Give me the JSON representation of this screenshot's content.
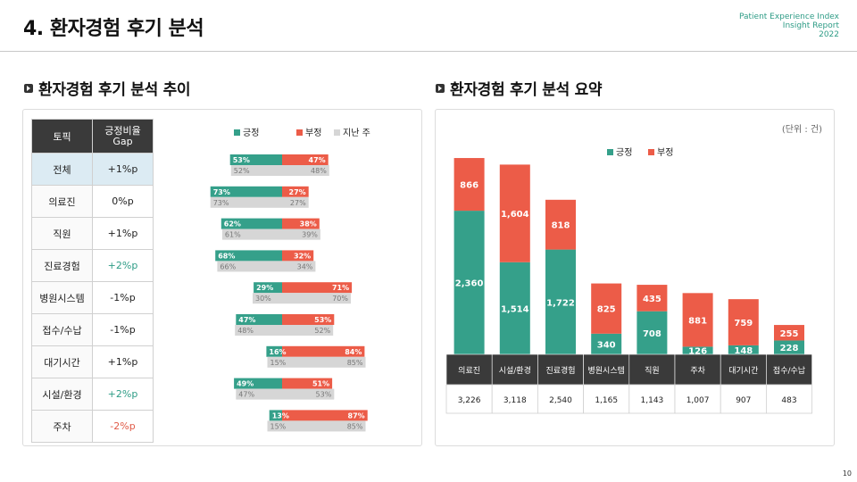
{
  "header": {
    "title": "4. 환자경험 후기 분석",
    "meta": [
      "Patient Experience Index",
      "Insight Report",
      "2022"
    ]
  },
  "left_section": {
    "title": "환자경험 후기 분석 추이"
  },
  "right_section": {
    "title": "환자경험 후기 분석 요약"
  },
  "table": {
    "headers": [
      "토픽",
      "긍정비율 Gap"
    ],
    "rows": [
      {
        "topic": "전체",
        "gap": "+1%p",
        "tone": "neu",
        "highlight": true
      },
      {
        "topic": "의료진",
        "gap": "0%p",
        "tone": "neu",
        "highlight": false
      },
      {
        "topic": "직원",
        "gap": "+1%p",
        "tone": "neu",
        "highlight": false
      },
      {
        "topic": "진료경험",
        "gap": "+2%p",
        "tone": "pos",
        "highlight": false
      },
      {
        "topic": "병원시스템",
        "gap": "-1%p",
        "tone": "neu",
        "highlight": false
      },
      {
        "topic": "접수/수납",
        "gap": "-1%p",
        "tone": "neu",
        "highlight": false
      },
      {
        "topic": "대기시간",
        "gap": "+1%p",
        "tone": "neu",
        "highlight": false
      },
      {
        "topic": "시설/환경",
        "gap": "+2%p",
        "tone": "pos",
        "highlight": false
      },
      {
        "topic": "주차",
        "gap": "-2%p",
        "tone": "neg",
        "highlight": false
      }
    ]
  },
  "colors": {
    "positive": "#35a08a",
    "negative": "#ec5c48",
    "previous": "#d6d6d6"
  },
  "chart_data": [
    {
      "type": "bar",
      "legend": [
        "긍정",
        "부정",
        "지난 주"
      ],
      "legend_position": "top",
      "categories": [
        "전체",
        "의료진",
        "직원",
        "진료경험",
        "병원시스템",
        "접수/수납",
        "대기시간",
        "시설/환경",
        "주차"
      ],
      "series": [
        {
          "name": "긍정",
          "values": [
            53,
            73,
            62,
            68,
            29,
            47,
            16,
            49,
            13
          ]
        },
        {
          "name": "부정",
          "values": [
            47,
            27,
            38,
            32,
            71,
            53,
            84,
            51,
            87
          ]
        },
        {
          "name": "지난 주 긍정",
          "values": [
            52,
            73,
            61,
            66,
            30,
            48,
            15,
            47,
            15
          ]
        },
        {
          "name": "지난 주 부정",
          "values": [
            48,
            27,
            39,
            34,
            70,
            52,
            85,
            53,
            85
          ]
        }
      ],
      "unit": "%"
    },
    {
      "type": "bar",
      "stacked": true,
      "unit_label": "(단위 : 건)",
      "legend": [
        "긍정",
        "부정"
      ],
      "legend_position": "top",
      "categories": [
        "의료진",
        "시설/환경",
        "진료경험",
        "병원시스템",
        "직원",
        "주차",
        "대기시간",
        "접수/수납"
      ],
      "series": [
        {
          "name": "긍정",
          "values": [
            2360,
            1514,
            1722,
            340,
            708,
            126,
            148,
            228
          ]
        },
        {
          "name": "부정",
          "values": [
            866,
            1604,
            818,
            825,
            435,
            881,
            759,
            255
          ]
        }
      ],
      "totals": [
        3226,
        3118,
        2540,
        1165,
        1143,
        1007,
        907,
        483
      ],
      "total_labels": [
        "3,226",
        "3,118",
        "2,540",
        "1,165",
        "1,143",
        "1,007",
        "907",
        "483"
      ],
      "pos_labels": [
        "2,360",
        "1,514",
        "1,722",
        "340",
        "708",
        "126",
        "148",
        "228"
      ],
      "neg_labels": [
        "866",
        "1,604",
        "818",
        "825",
        "435",
        "881",
        "759",
        "255"
      ],
      "ylim": [
        0,
        3300
      ]
    }
  ],
  "page_number": "10"
}
